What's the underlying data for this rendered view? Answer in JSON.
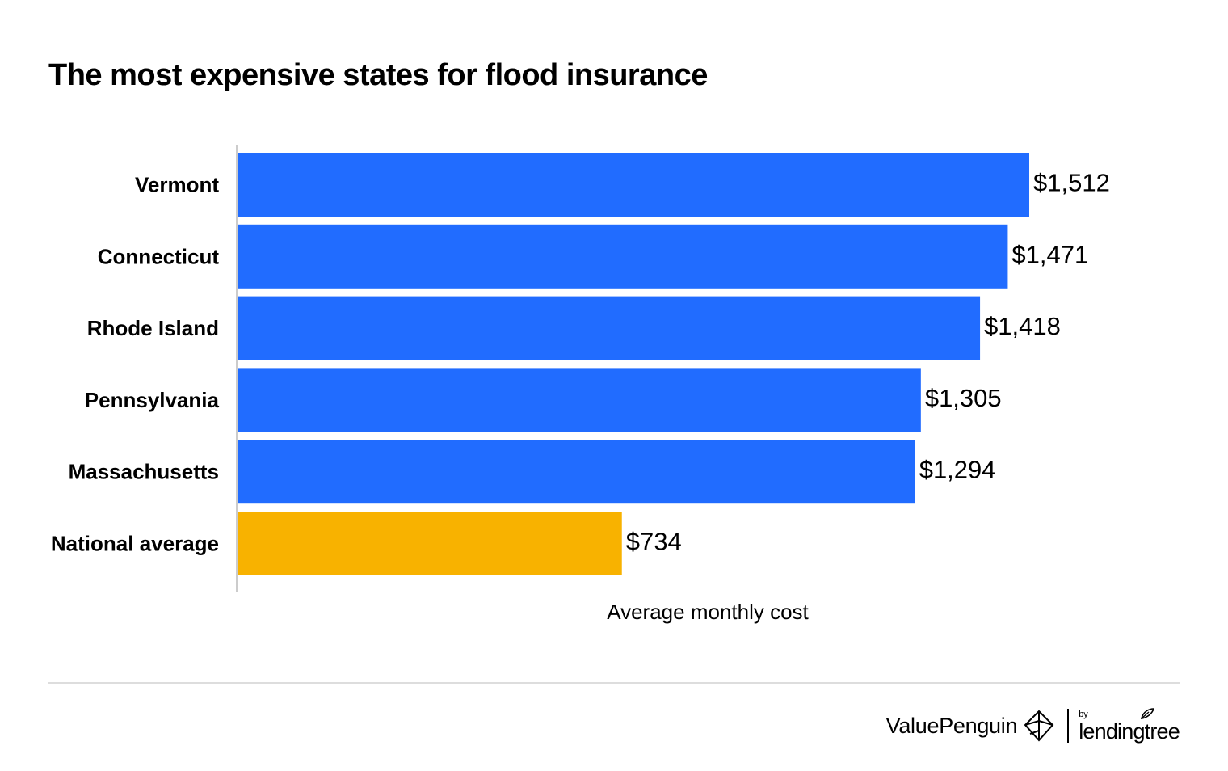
{
  "chart_data": {
    "type": "bar",
    "orientation": "horizontal",
    "title": "The most expensive states for flood insurance",
    "xlabel": "Average monthly cost",
    "ylabel": "",
    "categories": [
      "Vermont",
      "Connecticut",
      "Rhode Island",
      "Pennsylvania",
      "Massachusetts",
      "National average"
    ],
    "values": [
      1512,
      1471,
      1418,
      1305,
      1294,
      734
    ],
    "value_labels": [
      "$1,512",
      "$1,471",
      "$1,418",
      "$1,305",
      "$1,294",
      "$734"
    ],
    "bar_colors": [
      "#216cff",
      "#216cff",
      "#216cff",
      "#216cff",
      "#216cff",
      "#f8b200"
    ],
    "xlim": [
      0,
      1600
    ],
    "grid": false,
    "legend": "none"
  },
  "footer": {
    "brand": "ValuePenguin",
    "by": "by",
    "partner": "lendingtree",
    "icons": [
      "valuepenguin-logo-icon",
      "lendingtree-leaf-icon"
    ]
  },
  "colors": {
    "primary_bar": "#216cff",
    "highlight_bar": "#f8b200",
    "axis": "#cccccc",
    "divider": "#dddddd"
  }
}
